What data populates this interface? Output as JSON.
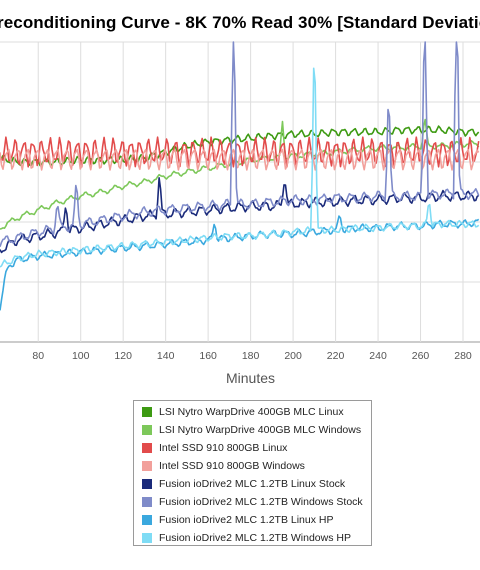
{
  "chart_data": {
    "type": "line",
    "title": "reconditioning Curve - 8K 70% Read 30% [Standard Deviatio",
    "xlabel": "Minutes",
    "ylabel": "",
    "x_ticks": [
      80,
      100,
      120,
      140,
      160,
      180,
      200,
      220,
      240,
      260,
      280
    ],
    "xlim": [
      62,
      288
    ],
    "grid": true,
    "legend_position": "bottom",
    "series": [
      {
        "name": "LSI Nytro WarpDrive 400GB MLC Linux",
        "color": "#3d9a12",
        "x": [
          62,
          70,
          80,
          90,
          100,
          110,
          120,
          130,
          140,
          150,
          160,
          170,
          180,
          190,
          200,
          210,
          220,
          230,
          240,
          250,
          260,
          270,
          280,
          288
        ],
        "y": [
          0.58,
          0.6,
          0.6,
          0.6,
          0.59,
          0.59,
          0.59,
          0.58,
          0.55,
          0.52,
          0.5,
          0.49,
          0.48,
          0.47,
          0.46,
          0.46,
          0.45,
          0.45,
          0.45,
          0.44,
          0.44,
          0.44,
          0.45,
          0.45
        ]
      },
      {
        "name": "LSI Nytro WarpDrive 400GB MLC Windows",
        "color": "#7dc85a",
        "x": [
          62,
          70,
          80,
          90,
          100,
          110,
          120,
          130,
          140,
          150,
          160,
          170,
          180,
          190,
          200,
          210,
          220,
          230,
          240,
          250,
          260,
          270,
          280,
          288
        ],
        "y": [
          0.93,
          0.88,
          0.84,
          0.8,
          0.77,
          0.75,
          0.72,
          0.7,
          0.67,
          0.65,
          0.63,
          0.61,
          0.59,
          0.58,
          0.57,
          0.56,
          0.55,
          0.54,
          0.53,
          0.53,
          0.52,
          0.52,
          0.51,
          0.51
        ]
      },
      {
        "name": "Intel SSD 910 800GB Linux",
        "color": "#e24b4b",
        "x": [
          62,
          70,
          80,
          90,
          100,
          110,
          120,
          130,
          140,
          150,
          160,
          170,
          180,
          190,
          200,
          210,
          220,
          230,
          240,
          250,
          260,
          270,
          280,
          288
        ],
        "y": [
          0.55,
          0.55,
          0.55,
          0.55,
          0.55,
          0.55,
          0.55,
          0.55,
          0.55,
          0.55,
          0.55,
          0.55,
          0.55,
          0.55,
          0.55,
          0.55,
          0.55,
          0.55,
          0.55,
          0.55,
          0.55,
          0.55,
          0.55,
          0.55
        ]
      },
      {
        "name": "Intel SSD 910 800GB Windows",
        "color": "#f2a09b",
        "x": [
          62,
          70,
          80,
          90,
          100,
          110,
          120,
          130,
          140,
          150,
          160,
          170,
          180,
          190,
          200,
          210,
          220,
          230,
          240,
          250,
          260,
          270,
          280,
          288
        ],
        "y": [
          0.58,
          0.58,
          0.58,
          0.58,
          0.58,
          0.58,
          0.58,
          0.58,
          0.58,
          0.58,
          0.58,
          0.58,
          0.58,
          0.58,
          0.58,
          0.58,
          0.58,
          0.58,
          0.58,
          0.58,
          0.58,
          0.58,
          0.58,
          0.58
        ]
      },
      {
        "name": "Fusion ioDrive2 MLC 1.2TB Linux Stock",
        "color": "#1a2a7a",
        "x": [
          62,
          70,
          80,
          90,
          100,
          110,
          120,
          130,
          140,
          150,
          160,
          170,
          180,
          190,
          200,
          210,
          220,
          230,
          240,
          250,
          260,
          270,
          280,
          288
        ],
        "y": [
          1.04,
          0.99,
          0.97,
          0.95,
          0.93,
          0.91,
          0.89,
          0.87,
          0.86,
          0.85,
          0.84,
          0.83,
          0.82,
          0.82,
          0.81,
          0.8,
          0.8,
          0.79,
          0.79,
          0.78,
          0.78,
          0.77,
          0.77,
          0.77
        ]
      },
      {
        "name": "Fusion ioDrive2 MLC 1.2TB Windows Stock",
        "color": "#7f8bc9",
        "x": [
          62,
          70,
          80,
          90,
          100,
          110,
          120,
          130,
          140,
          150,
          160,
          170,
          180,
          190,
          200,
          210,
          220,
          230,
          240,
          250,
          260,
          270,
          280,
          288
        ],
        "y": [
          1.0,
          0.98,
          0.95,
          0.93,
          0.91,
          0.89,
          0.87,
          0.85,
          0.84,
          0.83,
          0.82,
          0.81,
          0.81,
          0.8,
          0.79,
          0.79,
          0.78,
          0.78,
          0.77,
          0.77,
          0.77,
          0.76,
          0.76,
          0.76
        ]
      },
      {
        "name": "Fusion ioDrive2 MLC 1.2TB Linux HP",
        "color": "#3aa8de",
        "x": [
          62,
          64,
          66,
          70,
          80,
          90,
          100,
          110,
          120,
          130,
          140,
          150,
          160,
          170,
          180,
          190,
          200,
          210,
          220,
          230,
          240,
          250,
          260,
          270,
          280,
          288
        ],
        "y": [
          1.33,
          1.2,
          1.12,
          1.09,
          1.07,
          1.06,
          1.05,
          1.04,
          1.03,
          1.02,
          1.01,
          1.0,
          0.99,
          0.98,
          0.97,
          0.96,
          0.96,
          0.95,
          0.94,
          0.93,
          0.93,
          0.92,
          0.92,
          0.91,
          0.91,
          0.9
        ]
      },
      {
        "name": "Fusion ioDrive2 MLC 1.2TB Windows HP",
        "color": "#7fdcf5",
        "x": [
          62,
          70,
          80,
          90,
          100,
          110,
          120,
          130,
          140,
          150,
          160,
          170,
          180,
          190,
          200,
          210,
          220,
          230,
          240,
          250,
          260,
          270,
          280,
          288
        ],
        "y": [
          1.12,
          1.08,
          1.06,
          1.05,
          1.04,
          1.03,
          1.02,
          1.01,
          1.0,
          0.99,
          0.98,
          0.97,
          0.97,
          0.96,
          0.95,
          0.94,
          0.94,
          0.93,
          0.93,
          0.92,
          0.92,
          0.91,
          0.91,
          0.91
        ]
      }
    ]
  }
}
